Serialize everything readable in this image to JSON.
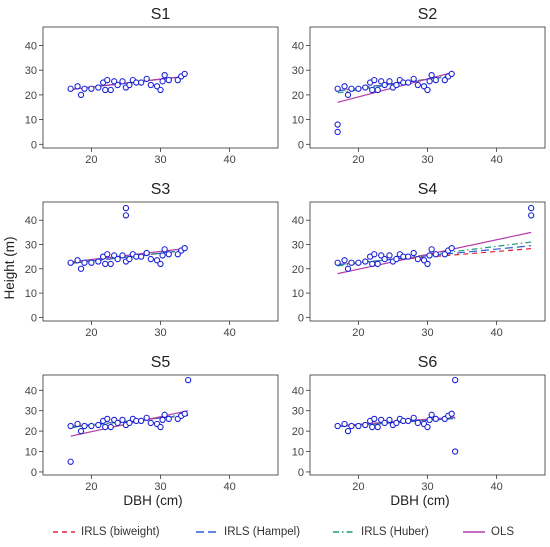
{
  "chart_data": {
    "type": "scatter",
    "ylabel": "Height (m)",
    "xlabel": "DBH (cm)",
    "x_ticks": [
      20,
      30,
      40
    ],
    "y_ticks": [
      0,
      10,
      20,
      30,
      40
    ],
    "xlim": [
      13,
      47
    ],
    "ylim": [
      -1.5,
      47.5
    ],
    "grid": false,
    "legend_position": "bottom",
    "colors": {
      "points": "#1a22d6",
      "point_fill": "#ffffff",
      "irls_biweight": "#e0223a",
      "irls_hampel": "#2f5fd6",
      "irls_huber": "#1b9e77",
      "ols": "#b43aa8"
    },
    "legend": [
      {
        "key": "irls_biweight",
        "label": "IRLS (biweight)",
        "dash": "5,4"
      },
      {
        "key": "irls_hampel",
        "label": "IRLS (Hampel)",
        "dash": "8,4"
      },
      {
        "key": "irls_huber",
        "label": "IRLS (Huber)",
        "dash": "6,3,1.5,3"
      },
      {
        "key": "ols",
        "label": "OLS",
        "dash": ""
      }
    ],
    "panels": [
      {
        "title": "S1",
        "points": [
          [
            17,
            22.5
          ],
          [
            18,
            23.5
          ],
          [
            18.5,
            20
          ],
          [
            19,
            22.5
          ],
          [
            20,
            22.5
          ],
          [
            21,
            23
          ],
          [
            21.7,
            25
          ],
          [
            22,
            22
          ],
          [
            22.3,
            26
          ],
          [
            22.8,
            22
          ],
          [
            23.3,
            25.5
          ],
          [
            23.8,
            24
          ],
          [
            24.5,
            25.5
          ],
          [
            25,
            23
          ],
          [
            25.5,
            24
          ],
          [
            26,
            26
          ],
          [
            26.5,
            25
          ],
          [
            27.2,
            25
          ],
          [
            28,
            26.5
          ],
          [
            28.6,
            24
          ],
          [
            29.5,
            23.5
          ],
          [
            30,
            22
          ],
          [
            30.3,
            25.5
          ],
          [
            30.6,
            28
          ],
          [
            31.2,
            26
          ],
          [
            32.5,
            26
          ],
          [
            33,
            27.5
          ],
          [
            33.5,
            28.5
          ]
        ],
        "fits": {
          "irls_biweight": [
            [
              17,
              22.2
            ],
            [
              33.5,
              27.5
            ]
          ],
          "irls_hampel": [
            [
              17,
              22.2
            ],
            [
              33.5,
              27.5
            ]
          ],
          "irls_huber": [
            [
              17,
              22.2
            ],
            [
              33.5,
              27.5
            ]
          ],
          "ols": [
            [
              17,
              22.2
            ],
            [
              33.5,
              27.5
            ]
          ]
        }
      },
      {
        "title": "S2",
        "points": [
          [
            17,
            22.5
          ],
          [
            18,
            23.5
          ],
          [
            18.5,
            20
          ],
          [
            19,
            22.5
          ],
          [
            20,
            22.5
          ],
          [
            21,
            23
          ],
          [
            21.7,
            25
          ],
          [
            22,
            22
          ],
          [
            22.3,
            26
          ],
          [
            22.8,
            22
          ],
          [
            23.3,
            25.5
          ],
          [
            23.8,
            24
          ],
          [
            24.5,
            25.5
          ],
          [
            25,
            23
          ],
          [
            25.5,
            24
          ],
          [
            26,
            26
          ],
          [
            26.5,
            25
          ],
          [
            27.2,
            25
          ],
          [
            28,
            26.5
          ],
          [
            28.6,
            24
          ],
          [
            29.5,
            23.5
          ],
          [
            30,
            22
          ],
          [
            30.3,
            25.5
          ],
          [
            30.6,
            28
          ],
          [
            31.2,
            26
          ],
          [
            32.5,
            26
          ],
          [
            33,
            27.5
          ],
          [
            33.5,
            28.5
          ],
          [
            17,
            8
          ],
          [
            17,
            5
          ]
        ],
        "fits": {
          "irls_biweight": [
            [
              17,
              21.7
            ],
            [
              33.5,
              27.6
            ]
          ],
          "irls_hampel": [
            [
              17,
              21.6
            ],
            [
              33.5,
              27.6
            ]
          ],
          "irls_huber": [
            [
              17,
              20.8
            ],
            [
              33.5,
              27.9
            ]
          ],
          "ols": [
            [
              17,
              17
            ],
            [
              33.5,
              29
            ]
          ]
        }
      },
      {
        "title": "S3",
        "points": [
          [
            17,
            22.5
          ],
          [
            18,
            23.5
          ],
          [
            18.5,
            20
          ],
          [
            19,
            22.5
          ],
          [
            20,
            22.5
          ],
          [
            21,
            23
          ],
          [
            21.7,
            25
          ],
          [
            22,
            22
          ],
          [
            22.3,
            26
          ],
          [
            22.8,
            22
          ],
          [
            23.3,
            25.5
          ],
          [
            23.8,
            24
          ],
          [
            24.5,
            25.5
          ],
          [
            25,
            23
          ],
          [
            25.5,
            24
          ],
          [
            26,
            26
          ],
          [
            26.5,
            25
          ],
          [
            27.2,
            25
          ],
          [
            28,
            26.5
          ],
          [
            28.6,
            24
          ],
          [
            29.5,
            23.5
          ],
          [
            30,
            22
          ],
          [
            30.3,
            25.5
          ],
          [
            30.6,
            28
          ],
          [
            31.2,
            26
          ],
          [
            32.5,
            26
          ],
          [
            33,
            27.5
          ],
          [
            33.5,
            28.5
          ],
          [
            25,
            45
          ],
          [
            25,
            42
          ]
        ],
        "fits": {
          "irls_biweight": [
            [
              17,
              22.2
            ],
            [
              33.5,
              27.5
            ]
          ],
          "irls_hampel": [
            [
              17,
              22.2
            ],
            [
              33.5,
              27.5
            ]
          ],
          "irls_huber": [
            [
              17,
              22.3
            ],
            [
              33.5,
              27.6
            ]
          ],
          "ols": [
            [
              17,
              22.8
            ],
            [
              33.5,
              28.3
            ]
          ]
        }
      },
      {
        "title": "S4",
        "points": [
          [
            17,
            22.5
          ],
          [
            18,
            23.5
          ],
          [
            18.5,
            20
          ],
          [
            19,
            22.5
          ],
          [
            20,
            22.5
          ],
          [
            21,
            23
          ],
          [
            21.7,
            25
          ],
          [
            22,
            22
          ],
          [
            22.3,
            26
          ],
          [
            22.8,
            22
          ],
          [
            23.3,
            25.5
          ],
          [
            23.8,
            24
          ],
          [
            24.5,
            25.5
          ],
          [
            25,
            23
          ],
          [
            25.5,
            24
          ],
          [
            26,
            26
          ],
          [
            26.5,
            25
          ],
          [
            27.2,
            25
          ],
          [
            28,
            26.5
          ],
          [
            28.6,
            24
          ],
          [
            29.5,
            23.5
          ],
          [
            30,
            22
          ],
          [
            30.3,
            25.5
          ],
          [
            30.6,
            28
          ],
          [
            31.2,
            26
          ],
          [
            32.5,
            26
          ],
          [
            33,
            27.5
          ],
          [
            33.5,
            28.5
          ],
          [
            45,
            45
          ],
          [
            45,
            42
          ]
        ],
        "fits": {
          "irls_biweight": [
            [
              17,
              21.8
            ],
            [
              45,
              28.3
            ]
          ],
          "irls_hampel": [
            [
              17,
              21.7
            ],
            [
              45,
              29.5
            ]
          ],
          "irls_huber": [
            [
              17,
              21.2
            ],
            [
              45,
              31
            ]
          ],
          "ols": [
            [
              17,
              18
            ],
            [
              45,
              35
            ]
          ]
        }
      },
      {
        "title": "S5",
        "points": [
          [
            17,
            22.5
          ],
          [
            18,
            23.5
          ],
          [
            18.5,
            20
          ],
          [
            19,
            22.5
          ],
          [
            20,
            22.5
          ],
          [
            21,
            23
          ],
          [
            21.7,
            25
          ],
          [
            22,
            22
          ],
          [
            22.3,
            26
          ],
          [
            22.8,
            22
          ],
          [
            23.3,
            25.5
          ],
          [
            23.8,
            24
          ],
          [
            24.5,
            25.5
          ],
          [
            25,
            23
          ],
          [
            25.5,
            24
          ],
          [
            26,
            26
          ],
          [
            26.5,
            25
          ],
          [
            27.2,
            25
          ],
          [
            28,
            26.5
          ],
          [
            28.6,
            24
          ],
          [
            29.5,
            23.5
          ],
          [
            30,
            22
          ],
          [
            30.3,
            25.5
          ],
          [
            30.6,
            28
          ],
          [
            31.2,
            26
          ],
          [
            32.5,
            26
          ],
          [
            33,
            27.5
          ],
          [
            33.5,
            28.5
          ],
          [
            17,
            5
          ],
          [
            34,
            45
          ]
        ],
        "fits": {
          "irls_biweight": [
            [
              17,
              22.2
            ],
            [
              34,
              27.7
            ]
          ],
          "irls_hampel": [
            [
              17,
              22.2
            ],
            [
              34,
              27.7
            ]
          ],
          "irls_huber": [
            [
              17,
              21.6
            ],
            [
              34,
              28.3
            ]
          ],
          "ols": [
            [
              17,
              17.5
            ],
            [
              34,
              30
            ]
          ]
        }
      },
      {
        "title": "S6",
        "points": [
          [
            17,
            22.5
          ],
          [
            18,
            23.5
          ],
          [
            18.5,
            20
          ],
          [
            19,
            22.5
          ],
          [
            20,
            22.5
          ],
          [
            21,
            23
          ],
          [
            21.7,
            25
          ],
          [
            22,
            22
          ],
          [
            22.3,
            26
          ],
          [
            22.8,
            22
          ],
          [
            23.3,
            25.5
          ],
          [
            23.8,
            24
          ],
          [
            24.5,
            25.5
          ],
          [
            25,
            23
          ],
          [
            25.5,
            24
          ],
          [
            26,
            26
          ],
          [
            26.5,
            25
          ],
          [
            27.2,
            25
          ],
          [
            28,
            26.5
          ],
          [
            28.6,
            24
          ],
          [
            29.5,
            23.5
          ],
          [
            30,
            22
          ],
          [
            30.3,
            25.5
          ],
          [
            30.6,
            28
          ],
          [
            31.2,
            26
          ],
          [
            32.5,
            26
          ],
          [
            33,
            27.5
          ],
          [
            33.5,
            28.5
          ],
          [
            34,
            45
          ],
          [
            34,
            10
          ]
        ],
        "fits": {
          "irls_biweight": [
            [
              17,
              22.2
            ],
            [
              34,
              26.2
            ]
          ],
          "irls_hampel": [
            [
              17,
              22.2
            ],
            [
              34,
              26.2
            ]
          ],
          "irls_huber": [
            [
              17,
              22.2
            ],
            [
              34,
              26.3
            ]
          ],
          "ols": [
            [
              17,
              22.6
            ],
            [
              34,
              26.8
            ]
          ]
        }
      }
    ]
  }
}
